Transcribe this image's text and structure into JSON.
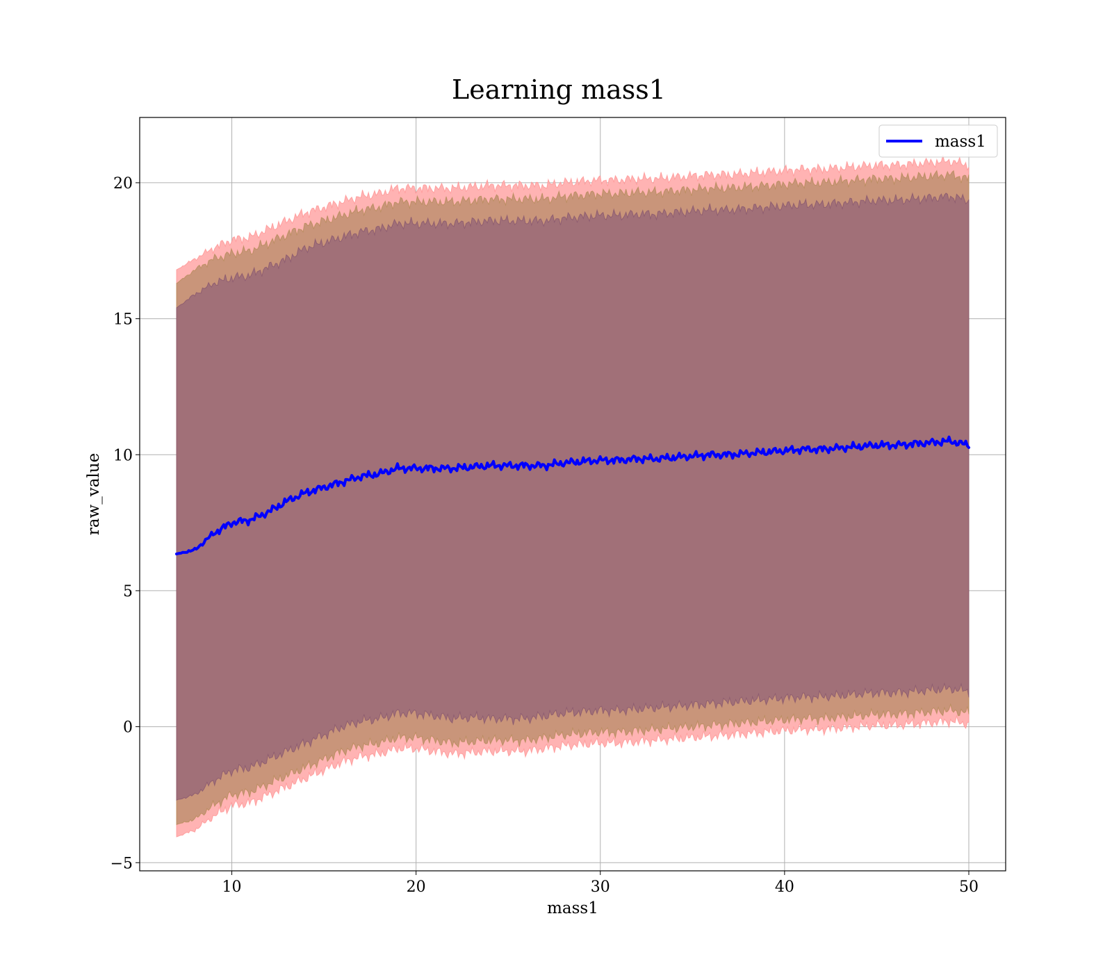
{
  "chart_data": {
    "type": "area",
    "title": "Learning mass1",
    "xlabel": "mass1",
    "ylabel": "raw_value",
    "xlim": [
      5,
      52
    ],
    "ylim": [
      -5.3,
      22.4
    ],
    "xticks": [
      10,
      20,
      30,
      40,
      50
    ],
    "yticks": [
      -5,
      0,
      5,
      10,
      15,
      20
    ],
    "xtick_labels": [
      "10",
      "20",
      "30",
      "40",
      "50"
    ],
    "ytick_labels": [
      "−5",
      "0",
      "5",
      "10",
      "15",
      "20"
    ],
    "grid": true,
    "legend": {
      "position": "top-right",
      "entries": [
        "mass1"
      ]
    },
    "colors": {
      "mean_line": "#0000ff",
      "band_outer": "#ffb3b3",
      "band_middle": "#c9957a",
      "band_inner": "#a17078"
    },
    "x": [
      7.0,
      8.0,
      9.0,
      10.0,
      11.0,
      12.0,
      13.0,
      14.0,
      15.0,
      16.0,
      17.0,
      18.0,
      19.0,
      20.0,
      21.0,
      22.0,
      23.0,
      24.0,
      25.0,
      26.0,
      27.0,
      28.0,
      29.0,
      30.0,
      31.0,
      32.0,
      33.0,
      34.0,
      35.0,
      36.0,
      37.0,
      38.0,
      39.0,
      40.0,
      41.0,
      42.0,
      43.0,
      44.0,
      45.0,
      46.0,
      47.0,
      48.0,
      49.0,
      50.0
    ],
    "series": [
      {
        "name": "mass1",
        "values": [
          6.35,
          6.5,
          7.1,
          7.5,
          7.6,
          7.9,
          8.3,
          8.6,
          8.8,
          9.0,
          9.2,
          9.3,
          9.5,
          9.5,
          9.5,
          9.5,
          9.55,
          9.6,
          9.6,
          9.6,
          9.6,
          9.7,
          9.75,
          9.8,
          9.8,
          9.85,
          9.85,
          9.9,
          9.95,
          10.0,
          10.0,
          10.05,
          10.1,
          10.15,
          10.2,
          10.2,
          10.25,
          10.3,
          10.35,
          10.35,
          10.4,
          10.45,
          10.5,
          10.35
        ]
      }
    ],
    "bands": {
      "inner_upper": [
        15.4,
        15.9,
        16.3,
        16.5,
        16.6,
        16.9,
        17.2,
        17.6,
        17.8,
        18.0,
        18.2,
        18.3,
        18.5,
        18.5,
        18.5,
        18.5,
        18.55,
        18.6,
        18.6,
        18.6,
        18.6,
        18.7,
        18.75,
        18.8,
        18.8,
        18.85,
        18.85,
        18.9,
        18.95,
        19.0,
        19.0,
        19.05,
        19.1,
        19.15,
        19.2,
        19.2,
        19.25,
        19.3,
        19.35,
        19.35,
        19.4,
        19.45,
        19.5,
        19.35
      ],
      "inner_lower": [
        -2.7,
        -2.5,
        -2.0,
        -1.6,
        -1.5,
        -1.2,
        -0.9,
        -0.6,
        -0.3,
        0.0,
        0.2,
        0.3,
        0.5,
        0.5,
        0.4,
        0.3,
        0.35,
        0.3,
        0.3,
        0.3,
        0.4,
        0.5,
        0.55,
        0.6,
        0.6,
        0.65,
        0.7,
        0.75,
        0.8,
        0.85,
        0.9,
        0.95,
        1.0,
        1.05,
        1.1,
        1.1,
        1.15,
        1.2,
        1.25,
        1.25,
        1.3,
        1.35,
        1.4,
        1.3
      ],
      "middle_upper": [
        16.3,
        16.8,
        17.2,
        17.4,
        17.5,
        17.8,
        18.1,
        18.4,
        18.6,
        18.8,
        19.0,
        19.1,
        19.3,
        19.3,
        19.3,
        19.3,
        19.35,
        19.4,
        19.4,
        19.4,
        19.4,
        19.5,
        19.55,
        19.6,
        19.6,
        19.65,
        19.65,
        19.7,
        19.75,
        19.8,
        19.8,
        19.85,
        19.9,
        19.95,
        20.0,
        20.0,
        20.05,
        20.1,
        20.15,
        20.15,
        20.2,
        20.25,
        20.3,
        20.15
      ],
      "middle_lower": [
        -3.6,
        -3.4,
        -2.9,
        -2.5,
        -2.4,
        -2.1,
        -1.8,
        -1.5,
        -1.2,
        -0.9,
        -0.7,
        -0.6,
        -0.4,
        -0.4,
        -0.5,
        -0.6,
        -0.55,
        -0.5,
        -0.5,
        -0.5,
        -0.4,
        -0.3,
        -0.25,
        -0.2,
        -0.2,
        -0.15,
        -0.1,
        -0.05,
        0.0,
        0.05,
        0.1,
        0.15,
        0.2,
        0.25,
        0.3,
        0.3,
        0.35,
        0.4,
        0.45,
        0.45,
        0.5,
        0.55,
        0.6,
        0.5
      ],
      "outer_upper": [
        16.8,
        17.2,
        17.6,
        17.9,
        18.0,
        18.3,
        18.6,
        18.9,
        19.1,
        19.3,
        19.5,
        19.6,
        19.8,
        19.8,
        19.8,
        19.8,
        19.85,
        19.9,
        19.9,
        19.9,
        19.9,
        20.0,
        20.05,
        20.1,
        20.1,
        20.15,
        20.15,
        20.2,
        20.25,
        20.3,
        20.3,
        20.35,
        20.4,
        20.45,
        20.5,
        20.5,
        20.55,
        20.6,
        20.65,
        20.65,
        20.7,
        20.75,
        20.8,
        20.65
      ],
      "outer_lower": [
        -4.05,
        -3.8,
        -3.3,
        -2.9,
        -2.8,
        -2.5,
        -2.2,
        -1.9,
        -1.6,
        -1.3,
        -1.1,
        -1.0,
        -0.8,
        -0.8,
        -0.9,
        -1.0,
        -0.95,
        -0.9,
        -0.9,
        -0.9,
        -0.8,
        -0.7,
        -0.65,
        -0.6,
        -0.6,
        -0.55,
        -0.5,
        -0.45,
        -0.4,
        -0.35,
        -0.3,
        -0.25,
        -0.2,
        -0.15,
        -0.1,
        -0.1,
        -0.05,
        0.0,
        0.05,
        0.05,
        0.1,
        0.15,
        0.2,
        0.1
      ]
    }
  }
}
